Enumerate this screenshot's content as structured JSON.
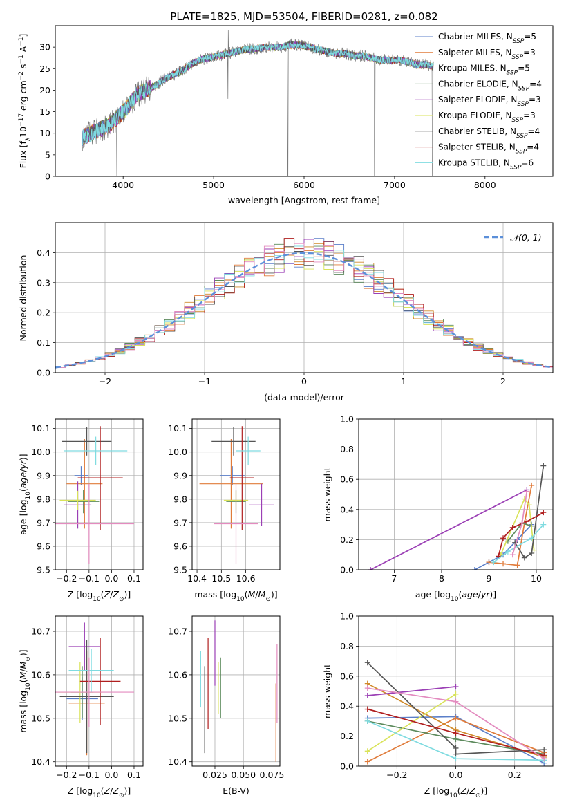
{
  "figure_title": "PLATE=1825, MJD=53504, FIBERID=0281, z=0.082",
  "chart_data": [
    {
      "id": "spectrum",
      "type": "line",
      "title": "PLATE=1825, MJD=53504, FIBERID=0281, z=0.082",
      "xlabel": "wavelength [Angstrom, rest frame]",
      "ylabel": "Flux [f_λ10^-17 erg cm^-2 s^-1 A^-1]",
      "xlim": [
        3250,
        8750
      ],
      "ylim": [
        0,
        35
      ],
      "xticks": [
        4000,
        5000,
        6000,
        7000,
        8000
      ],
      "yticks": [
        0,
        5,
        10,
        15,
        20,
        25,
        30
      ],
      "grid": false,
      "legend_position": "upper-right",
      "observed_envelope": {
        "x": [
          3550,
          3650,
          3750,
          3850,
          3950,
          4050,
          4150,
          4250,
          4350,
          4450,
          4550,
          4650,
          4750,
          4850,
          4950,
          5050,
          5150,
          5250,
          5350,
          5450,
          5550,
          5650,
          5750,
          5850,
          5950,
          6050,
          6150,
          6250,
          6350,
          6450,
          6550,
          6650,
          6750,
          6850,
          6950,
          7050,
          7150,
          7250,
          7350,
          7430
        ],
        "y": [
          9,
          10,
          11,
          12,
          14,
          16,
          19,
          20,
          21,
          22.5,
          23.5,
          24.5,
          26,
          27,
          27.5,
          28,
          28.5,
          29,
          29.5,
          29.5,
          30,
          30,
          30,
          30.5,
          30.5,
          30,
          29.5,
          29,
          28.5,
          28.5,
          28,
          28,
          27.5,
          27,
          27,
          27,
          26.5,
          26,
          26,
          25.5
        ]
      },
      "features": [
        {
          "wavelength": 3540,
          "flux_min": 0
        },
        {
          "wavelength": 3930,
          "flux_min": 0
        },
        {
          "wavelength": 5160,
          "flux_min": 18,
          "flux_max": 34
        },
        {
          "wavelength": 5820,
          "flux_min": 0
        },
        {
          "wavelength": 6780,
          "flux_min": 0
        },
        {
          "wavelength": 7420,
          "flux_min": 0
        }
      ],
      "series": [
        {
          "name": "Chabrier MILES, N_SSP=5",
          "label_main": "Chabrier MILES, N",
          "label_sub": "SSP",
          "label_tail": "=5",
          "color": "#5b7fc9"
        },
        {
          "name": "Salpeter MILES, N_SSP=3",
          "label_main": "Salpeter MILES, N",
          "label_sub": "SSP",
          "label_tail": "=3",
          "color": "#e07b3a"
        },
        {
          "name": "Kroupa MILES, N_SSP=5",
          "label_main": "Kroupa MILES, N",
          "label_sub": "SSP",
          "label_tail": "=5",
          "color": "#d08a2a"
        },
        {
          "name": "Chabrier ELODIE, N_SSP=4",
          "label_main": "Chabrier ELODIE, N",
          "label_sub": "SSP",
          "label_tail": "=4",
          "color": "#5c8a5c"
        },
        {
          "name": "Salpeter ELODIE, N_SSP=3",
          "label_main": "Salpeter ELODIE, N",
          "label_sub": "SSP",
          "label_tail": "=3",
          "color": "#9b3fb5"
        },
        {
          "name": "Kroupa ELODIE, N_SSP=3",
          "label_main": "Kroupa ELODIE, N",
          "label_sub": "SSP",
          "label_tail": "=3",
          "color": "#d9e35a"
        },
        {
          "name": "Chabrier STELIB, N_SSP=4",
          "label_main": "Chabrier STELIB, N",
          "label_sub": "SSP",
          "label_tail": "=4",
          "color": "#555555"
        },
        {
          "name": "Salpeter STELIB, N_SSP=4",
          "label_main": "Salpeter STELIB, N",
          "label_sub": "SSP",
          "label_tail": "=4",
          "color": "#b01f1f"
        },
        {
          "name": "Kroupa STELIB, N_SSP=6",
          "label_main": "Kroupa STELIB, N",
          "label_sub": "SSP",
          "label_tail": "=6",
          "color": "#7fdbe0"
        }
      ]
    },
    {
      "id": "residuals",
      "type": "step-histogram",
      "xlabel": "(data-model)/error",
      "ylabel": "Normed distribution",
      "xlim": [
        -2.5,
        2.5
      ],
      "ylim": [
        0,
        0.5
      ],
      "xticks": [
        -2,
        -1,
        0,
        1,
        2
      ],
      "yticks": [
        0.0,
        0.1,
        0.2,
        0.3,
        0.4
      ],
      "grid": true,
      "legend_position": "upper-right",
      "reference_curve": {
        "name": "𝒩(0, 1)",
        "mean": 0,
        "sigma": 1,
        "color": "#5b8fd9",
        "style": "dashed"
      },
      "bin_width": 0.1,
      "bin_start": -2.5
    },
    {
      "id": "z_age",
      "type": "errorbar",
      "xlabel": "Z [log10(Z/Z⊙)]",
      "ylabel": "age [log10(age/yr)]",
      "xlim": [
        -0.25,
        0.14
      ],
      "ylim": [
        9.5,
        10.14
      ],
      "xticks": [
        -0.2,
        -0.1,
        0.0,
        0.1
      ],
      "yticks": [
        9.5,
        9.6,
        9.7,
        9.8,
        9.9,
        10.0,
        10.1
      ],
      "grid": true,
      "points": [
        {
          "x": -0.135,
          "y": 9.9,
          "xerr": 0.03,
          "yerr": 0.04,
          "color": "#5b7fc9"
        },
        {
          "x": -0.12,
          "y": 9.865,
          "xerr": 0.08,
          "yerr": 0.19,
          "color": "#e07b3a"
        },
        {
          "x": -0.125,
          "y": 9.79,
          "xerr": 0.07,
          "yerr": 0.05,
          "color": "#5c8a5c"
        },
        {
          "x": -0.15,
          "y": 9.775,
          "xerr": 0.06,
          "yerr": 0.1,
          "color": "#9b3fb5"
        },
        {
          "x": -0.15,
          "y": 9.795,
          "xerr": 0.08,
          "yerr": 0.04,
          "color": "#d9e35a"
        },
        {
          "x": -0.11,
          "y": 10.045,
          "xerr": 0.11,
          "yerr": 0.06,
          "color": "#555555"
        },
        {
          "x": -0.05,
          "y": 9.89,
          "xerr": 0.1,
          "yerr": 0.22,
          "color": "#b01f1f"
        },
        {
          "x": -0.07,
          "y": 10.005,
          "xerr": 0.14,
          "yerr": 0.06,
          "color": "#7fdbe0"
        },
        {
          "x": -0.1,
          "y": 9.695,
          "xerr": 0.2,
          "yerr": 0.17,
          "color": "#e38bbf"
        }
      ]
    },
    {
      "id": "mass_age",
      "type": "errorbar",
      "xlabel": "mass [log10(M/M⊙)]",
      "ylabel": "",
      "xlim": [
        10.38,
        10.74
      ],
      "ylim": [
        9.5,
        10.14
      ],
      "xticks": [
        10.4,
        10.5,
        10.6
      ],
      "yticks": [
        9.5,
        9.6,
        9.7,
        9.8,
        9.9,
        10.0,
        10.1
      ],
      "grid": true,
      "points": [
        {
          "x": 10.545,
          "y": 9.9,
          "xerr": 0.05,
          "yerr": 0.04,
          "color": "#5b7fc9"
        },
        {
          "x": 10.54,
          "y": 9.865,
          "xerr": 0.13,
          "yerr": 0.19,
          "color": "#e07b3a"
        },
        {
          "x": 10.56,
          "y": 9.79,
          "xerr": 0.04,
          "yerr": 0.05,
          "color": "#5c8a5c"
        },
        {
          "x": 10.665,
          "y": 9.775,
          "xerr": 0.05,
          "yerr": 0.09,
          "color": "#9b3fb5"
        },
        {
          "x": 10.56,
          "y": 9.795,
          "xerr": 0.05,
          "yerr": 0.04,
          "color": "#d9e35a"
        },
        {
          "x": 10.55,
          "y": 10.045,
          "xerr": 0.09,
          "yerr": 0.06,
          "color": "#555555"
        },
        {
          "x": 10.585,
          "y": 9.89,
          "xerr": 0.05,
          "yerr": 0.22,
          "color": "#b01f1f"
        },
        {
          "x": 10.61,
          "y": 10.005,
          "xerr": 0.05,
          "yerr": 0.06,
          "color": "#7fdbe0"
        },
        {
          "x": 10.56,
          "y": 9.695,
          "xerr": 0.09,
          "yerr": 0.17,
          "color": "#e38bbf"
        }
      ]
    },
    {
      "id": "age_weight",
      "type": "line",
      "xlabel": "age [log10(age/yr)]",
      "ylabel": "mass weight",
      "xlim": [
        6.25,
        10.35
      ],
      "ylim": [
        0,
        1
      ],
      "xticks": [
        7,
        8,
        9,
        10
      ],
      "yticks": [
        0.0,
        0.2,
        0.4,
        0.6,
        0.8,
        1.0
      ],
      "grid": true,
      "series": [
        {
          "color": "#5b7fc9",
          "x": [
            8.7,
            9.0,
            9.3,
            9.6,
            9.9
          ],
          "y": [
            0.0,
            0.05,
            0.1,
            0.2,
            0.3
          ]
        },
        {
          "color": "#e07b3a",
          "x": [
            9.0,
            9.3,
            9.6,
            9.75,
            9.9
          ],
          "y": [
            0.05,
            0.04,
            0.03,
            0.31,
            0.56
          ]
        },
        {
          "color": "#5c8a5c",
          "x": [
            9.4,
            9.7,
            9.9
          ],
          "y": [
            0.19,
            0.31,
            0.29
          ]
        },
        {
          "color": "#9b3fb5",
          "x": [
            6.5,
            9.8
          ],
          "y": [
            0.0,
            0.53
          ]
        },
        {
          "color": "#d9e35a",
          "x": [
            9.25,
            9.75,
            9.85,
            9.95
          ],
          "y": [
            0.1,
            0.47,
            0.43,
            0.13
          ]
        },
        {
          "color": "#555555",
          "x": [
            9.55,
            9.75,
            9.9,
            10.15
          ],
          "y": [
            0.18,
            0.08,
            0.11,
            0.69
          ]
        },
        {
          "color": "#b01f1f",
          "x": [
            9.2,
            9.3,
            9.5,
            9.8,
            10.15
          ],
          "y": [
            0.09,
            0.21,
            0.28,
            0.32,
            0.38
          ]
        },
        {
          "color": "#7fdbe0",
          "x": [
            9.1,
            9.4,
            9.9,
            10.15
          ],
          "y": [
            0.05,
            0.12,
            0.21,
            0.3
          ]
        },
        {
          "color": "#e38bbf",
          "x": [
            9.5,
            9.7,
            9.8
          ],
          "y": [
            0.1,
            0.31,
            0.52
          ]
        }
      ]
    },
    {
      "id": "z_mass",
      "type": "errorbar",
      "xlabel": "Z [log10(Z/Z⊙)]",
      "ylabel": "mass [log10(M/M⊙)]",
      "xlim": [
        -0.25,
        0.14
      ],
      "ylim": [
        10.39,
        10.735
      ],
      "xticks": [
        -0.2,
        -0.1,
        0.0,
        0.1
      ],
      "yticks": [
        10.4,
        10.5,
        10.6,
        10.7
      ],
      "grid": true,
      "points": [
        {
          "x": -0.13,
          "y": 10.545,
          "xerr": 0.07,
          "yerr": 0.05,
          "color": "#5b7fc9"
        },
        {
          "x": -0.11,
          "y": 10.535,
          "xerr": 0.08,
          "yerr": 0.12,
          "color": "#e07b3a"
        },
        {
          "x": -0.13,
          "y": 10.56,
          "xerr": 0.05,
          "yerr": 0.06,
          "color": "#5c8a5c"
        },
        {
          "x": -0.12,
          "y": 10.665,
          "xerr": 0.07,
          "yerr": 0.055,
          "color": "#9b3fb5"
        },
        {
          "x": -0.14,
          "y": 10.56,
          "xerr": 0.1,
          "yerr": 0.07,
          "color": "#d9e35a"
        },
        {
          "x": -0.11,
          "y": 10.55,
          "xerr": 0.12,
          "yerr": 0.13,
          "color": "#555555"
        },
        {
          "x": -0.05,
          "y": 10.585,
          "xerr": 0.09,
          "yerr": 0.1,
          "color": "#b01f1f"
        },
        {
          "x": -0.09,
          "y": 10.61,
          "xerr": 0.1,
          "yerr": 0.05,
          "color": "#7fdbe0"
        },
        {
          "x": -0.1,
          "y": 10.56,
          "xerr": 0.2,
          "yerr": 0.08,
          "color": "#e38bbf"
        }
      ]
    },
    {
      "id": "ebv_mass",
      "type": "errorbar",
      "xlabel": "E(B-V)",
      "ylabel": "",
      "xlim": [
        0.005,
        0.082
      ],
      "ylim": [
        10.39,
        10.735
      ],
      "xticks": [
        0.025,
        0.05,
        0.075
      ],
      "yticks": [
        10.4,
        10.5,
        10.6,
        10.7
      ],
      "grid": true,
      "points": [
        {
          "x": 0.0125,
          "y": 10.59,
          "yerr": 0.065,
          "color": "#7fdbe0"
        },
        {
          "x": 0.016,
          "y": 10.52,
          "yerr": 0.1,
          "color": "#555555"
        },
        {
          "x": 0.019,
          "y": 10.58,
          "yerr": 0.105,
          "color": "#b01f1f"
        },
        {
          "x": 0.025,
          "y": 10.65,
          "yerr": 0.075,
          "color": "#9b3fb5"
        },
        {
          "x": 0.028,
          "y": 10.57,
          "yerr": 0.06,
          "color": "#d9e35a"
        },
        {
          "x": 0.03,
          "y": 10.57,
          "yerr": 0.07,
          "color": "#5c8a5c"
        },
        {
          "x": 0.0785,
          "y": 10.49,
          "yerr": 0.09,
          "color": "#e07b3a"
        },
        {
          "x": 0.0795,
          "y": 10.58,
          "yerr": 0.09,
          "color": "#e38bbf"
        }
      ]
    },
    {
      "id": "z_weight",
      "type": "line",
      "xlabel": "Z [log10(Z/Z⊙)]",
      "ylabel": "mass weight",
      "xlim": [
        -0.33,
        0.33
      ],
      "ylim": [
        0,
        1
      ],
      "xticks": [
        -0.2,
        0.0,
        0.2
      ],
      "yticks": [
        0.0,
        0.2,
        0.4,
        0.6,
        0.8,
        1.0
      ],
      "grid": true,
      "series": [
        {
          "color": "#5b7fc9",
          "x": [
            -0.3,
            0.0,
            0.3
          ],
          "y": [
            0.32,
            0.33,
            0.02
          ]
        },
        {
          "color": "#e07b3a",
          "x": [
            -0.3,
            0.0,
            0.3
          ],
          "y": [
            0.03,
            0.32,
            0.09
          ]
        },
        {
          "color": "#d08a2a",
          "x": [
            -0.3,
            0.0,
            0.3
          ],
          "y": [
            0.55,
            0.24,
            0.06
          ]
        },
        {
          "color": "#5c8a5c",
          "x": [
            -0.3,
            0.0,
            0.3
          ],
          "y": [
            0.3,
            0.18,
            0.08
          ]
        },
        {
          "color": "#9b3fb5",
          "x": [
            -0.3,
            0.0
          ],
          "y": [
            0.47,
            0.53
          ]
        },
        {
          "color": "#d9e35a",
          "x": [
            -0.3,
            0.0
          ],
          "y": [
            0.1,
            0.48
          ]
        },
        {
          "color": "#555555",
          "x": [
            -0.3,
            0.0,
            0.0,
            0.3
          ],
          "y": [
            0.69,
            0.12,
            0.08,
            0.11
          ]
        },
        {
          "color": "#b01f1f",
          "x": [
            -0.3,
            0.0,
            0.3
          ],
          "y": [
            0.38,
            0.22,
            0.07
          ]
        },
        {
          "color": "#7fdbe0",
          "x": [
            -0.3,
            0.0,
            0.3
          ],
          "y": [
            0.3,
            0.05,
            0.04
          ]
        },
        {
          "color": "#e38bbf",
          "x": [
            -0.3,
            0.0,
            0.3
          ],
          "y": [
            0.52,
            0.43,
            0.05
          ]
        }
      ]
    }
  ]
}
